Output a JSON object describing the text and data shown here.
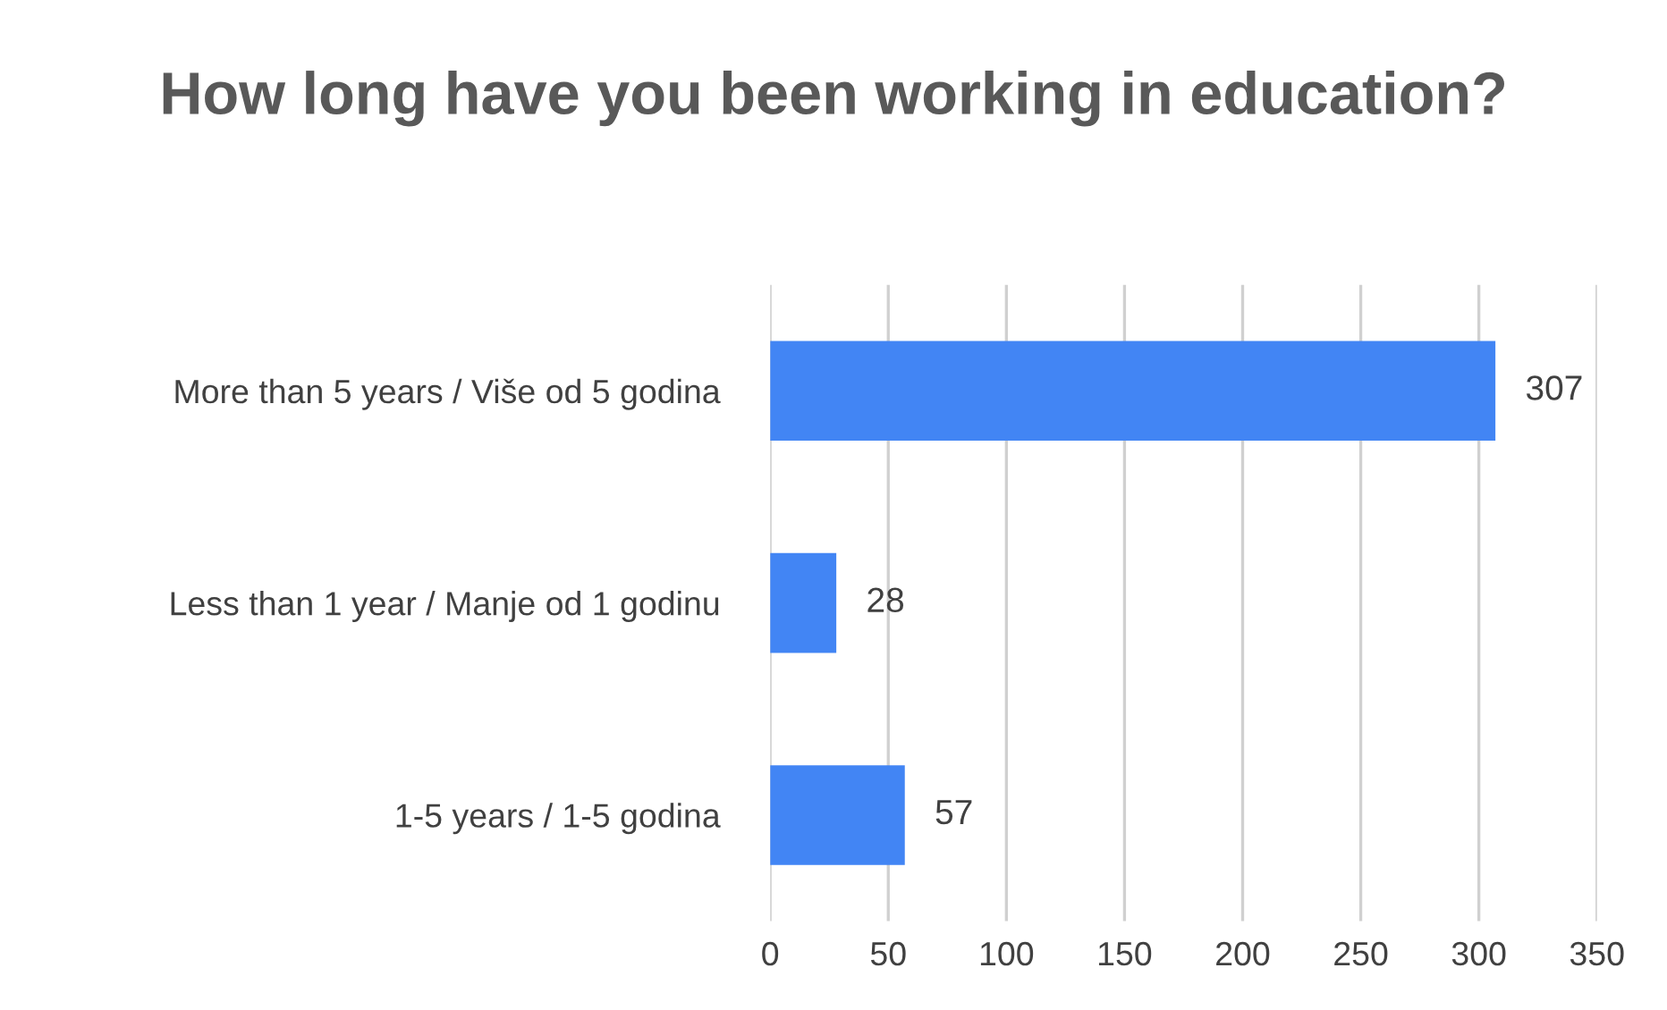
{
  "chart_data": {
    "type": "bar",
    "orientation": "horizontal",
    "title": "How long have you been working in education?",
    "categories": [
      "More than 5 years / Više od 5 godina",
      "Less than 1 year / Manje od 1 godinu",
      "1-5 years / 1-5 godina"
    ],
    "values": [
      307,
      28,
      57
    ],
    "color": "#4285f4",
    "xlim": [
      0,
      350
    ],
    "xticks": [
      0,
      50,
      100,
      150,
      200,
      250,
      300,
      350
    ],
    "grid": "x",
    "data_labels": true
  }
}
